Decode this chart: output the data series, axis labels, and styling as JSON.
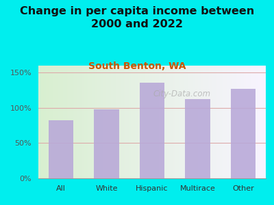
{
  "title": "Change in per capita income between\n2000 and 2022",
  "subtitle": "South Benton, WA",
  "categories": [
    "All",
    "White",
    "Hispanic",
    "Multirace",
    "Other"
  ],
  "values": [
    82,
    98,
    136,
    112,
    127
  ],
  "bar_color": "#b8a8d8",
  "title_fontsize": 11.5,
  "subtitle_fontsize": 10,
  "subtitle_color": "#cc5500",
  "background_color": "#00eeee",
  "ylim": [
    0,
    160
  ],
  "yticks": [
    0,
    50,
    100,
    150
  ],
  "ytick_labels": [
    "0%",
    "50%",
    "100%",
    "150%"
  ],
  "watermark": "City-Data.com",
  "grid_color": "#ddaaaa",
  "plot_bg_left": "#d8efd0",
  "plot_bg_right": "#f8f4ff"
}
